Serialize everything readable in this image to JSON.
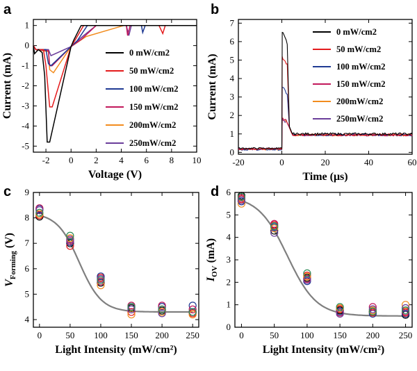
{
  "chart_data": [
    {
      "panel": "a",
      "type": "line",
      "xlabel": "Voltage (V)",
      "ylabel": "Current (mA)",
      "xlim": [
        -3,
        10
      ],
      "ylim": [
        -5.3,
        1.3
      ],
      "xticks": [
        -2,
        0,
        2,
        4,
        6,
        8,
        10
      ],
      "yticks": [
        1,
        0,
        -1,
        -2,
        -3,
        -4,
        -5
      ],
      "legend_position": "right",
      "series": [
        {
          "name": "0 mW/cm2",
          "color": "#000000",
          "points": [
            [
              -3,
              0
            ],
            [
              -2.9,
              -0.4
            ],
            [
              -2.6,
              -0.2
            ],
            [
              -2.3,
              -0.35
            ],
            [
              -2.1,
              -1.5
            ],
            [
              -1.9,
              -4.8
            ],
            [
              -1.7,
              -4.8
            ],
            [
              0,
              -0.05
            ],
            [
              0.2,
              0.25
            ],
            [
              0.8,
              1
            ],
            [
              8.4,
              1
            ],
            [
              8.6,
              1
            ],
            [
              10,
              1
            ]
          ]
        },
        {
          "name": "50 mW/cm2",
          "color": "#e41a1c",
          "points": [
            [
              -3,
              0
            ],
            [
              -2.8,
              -0.2
            ],
            [
              -2.2,
              -0.2
            ],
            [
              -2.0,
              -1.0
            ],
            [
              -1.7,
              -3.05
            ],
            [
              -1.5,
              -3.05
            ],
            [
              0,
              -0.05
            ],
            [
              0.3,
              0.25
            ],
            [
              1.0,
              1
            ],
            [
              7.0,
              1
            ],
            [
              7.3,
              0.6
            ],
            [
              7.5,
              1
            ],
            [
              10,
              1
            ]
          ]
        },
        {
          "name": "100 mW/cm2",
          "color": "#1f3a93",
          "points": [
            [
              -3,
              0
            ],
            [
              -2.8,
              -0.2
            ],
            [
              -2.0,
              -0.2
            ],
            [
              -1.8,
              -0.9
            ],
            [
              -1.6,
              -1.0
            ],
            [
              0,
              -0.05
            ],
            [
              0.5,
              0.25
            ],
            [
              1.3,
              1
            ],
            [
              5.6,
              1
            ],
            [
              5.7,
              0.65
            ],
            [
              5.9,
              1
            ],
            [
              10,
              1
            ]
          ]
        },
        {
          "name": "150 mW/cm2",
          "color": "#c2185b",
          "points": [
            [
              -3,
              0
            ],
            [
              -2.8,
              -0.2
            ],
            [
              -1.8,
              -0.25
            ],
            [
              -1.7,
              -1.0
            ],
            [
              -1.5,
              -1.0
            ],
            [
              0,
              -0.05
            ],
            [
              0.8,
              0.3
            ],
            [
              2.0,
              1
            ],
            [
              4.4,
              1
            ],
            [
              4.5,
              0.5
            ],
            [
              4.7,
              1
            ],
            [
              10,
              1
            ]
          ]
        },
        {
          "name": "200mW/cm2",
          "color": "#f28c1e",
          "points": [
            [
              -3,
              0
            ],
            [
              -2.8,
              -0.2
            ],
            [
              -1.8,
              -0.3
            ],
            [
              -1.7,
              -1.2
            ],
            [
              -1.4,
              -1.35
            ],
            [
              0,
              -0.05
            ],
            [
              1.2,
              0.45
            ],
            [
              4.2,
              1
            ],
            [
              10,
              1
            ]
          ]
        },
        {
          "name": "250mW/cm2",
          "color": "#6a3d9a",
          "points": [
            [
              -3,
              0
            ],
            [
              -2.8,
              -0.2
            ],
            [
              -1.8,
              -0.2
            ],
            [
              -1.6,
              -0.5
            ],
            [
              0,
              -0.05
            ],
            [
              1.0,
              0.5
            ],
            [
              2.0,
              1
            ],
            [
              4.4,
              1
            ],
            [
              4.6,
              0.5
            ],
            [
              4.8,
              1
            ],
            [
              10,
              1
            ]
          ]
        }
      ]
    },
    {
      "panel": "b",
      "type": "line",
      "xlabel": "Time (μs)",
      "ylabel": "Current (mA)",
      "xlim": [
        -20,
        60
      ],
      "ylim": [
        -0.1,
        7.2
      ],
      "xticks": [
        -20,
        0,
        20,
        40,
        60
      ],
      "yticks": [
        0,
        1,
        2,
        3,
        4,
        5,
        6,
        7
      ],
      "legend_position": "right",
      "series": [
        {
          "name": "0 mW/cm2",
          "color": "#000000",
          "base": 0.22,
          "peak": 6.5,
          "tail": 1.0
        },
        {
          "name": "50 mW/cm2",
          "color": "#e41a1c",
          "base": 0.18,
          "peak": 5.2,
          "tail": 0.95
        },
        {
          "name": "100 mW/cm2",
          "color": "#1f3a93",
          "base": 0.15,
          "peak": 3.5,
          "tail": 0.95
        },
        {
          "name": "150 mW/cm2",
          "color": "#c2185b",
          "base": 0.2,
          "peak": 1.85,
          "tail": 0.95
        },
        {
          "name": "200mW/cm2",
          "color": "#f28c1e",
          "base": 0.16,
          "peak": 1.85,
          "tail": 0.95
        },
        {
          "name": "250mW/cm2",
          "color": "#6a3d9a",
          "base": 0.2,
          "peak": 1.8,
          "tail": 0.95
        }
      ]
    },
    {
      "panel": "c",
      "type": "scatter",
      "xlabel": "Light Intensity (mW/cm²)",
      "ylabel_main": "V",
      "ylabel_sub": "Forming",
      "ylabel_unit": " (V)",
      "xlim": [
        -10,
        260
      ],
      "ylim": [
        3.7,
        9
      ],
      "xticks": [
        0,
        50,
        100,
        150,
        200,
        250
      ],
      "yticks": [
        4,
        5,
        6,
        7,
        8,
        9
      ],
      "fit_color": "#7f7f7f",
      "fit": {
        "top": 8.2,
        "bottom": 4.3,
        "x0": 65,
        "k": 0.055
      },
      "marker_colors": [
        "#000000",
        "#e41a1c",
        "#1f3a93",
        "#c2185b",
        "#f28c1e",
        "#6a3d9a",
        "#2e8b57"
      ],
      "points": [
        [
          0,
          8.05
        ],
        [
          0,
          8.1
        ],
        [
          0,
          8.35
        ],
        [
          0,
          8.38
        ],
        [
          0,
          8.15
        ],
        [
          0,
          8.3
        ],
        [
          0,
          8.2
        ],
        [
          50,
          7.0
        ],
        [
          50,
          6.9
        ],
        [
          50,
          7.05
        ],
        [
          50,
          7.1
        ],
        [
          50,
          7.2
        ],
        [
          50,
          7.15
        ],
        [
          50,
          7.3
        ],
        [
          100,
          5.45
        ],
        [
          100,
          5.65
        ],
        [
          100,
          5.7
        ],
        [
          100,
          5.5
        ],
        [
          100,
          5.35
        ],
        [
          100,
          5.6
        ],
        [
          100,
          5.55
        ],
        [
          150,
          4.45
        ],
        [
          150,
          4.3
        ],
        [
          150,
          4.5
        ],
        [
          150,
          4.55
        ],
        [
          150,
          4.2
        ],
        [
          150,
          4.4
        ],
        [
          150,
          4.5
        ],
        [
          200,
          4.35
        ],
        [
          200,
          4.4
        ],
        [
          200,
          4.5
        ],
        [
          200,
          4.55
        ],
        [
          200,
          4.3
        ],
        [
          200,
          4.25
        ],
        [
          200,
          4.4
        ],
        [
          250,
          4.3
        ],
        [
          250,
          4.25
        ],
        [
          250,
          4.55
        ],
        [
          250,
          4.4
        ],
        [
          250,
          4.2
        ],
        [
          250,
          4.3
        ],
        [
          250,
          4.3
        ]
      ]
    },
    {
      "panel": "d",
      "type": "scatter",
      "xlabel": "Light Intensity (mW/cm²)",
      "ylabel_main": "I",
      "ylabel_sub": "OV",
      "ylabel_unit": " (mA)",
      "xlim": [
        -10,
        260
      ],
      "ylim": [
        0,
        6
      ],
      "xticks": [
        0,
        50,
        100,
        150,
        200,
        250
      ],
      "yticks": [
        0,
        1,
        2,
        3,
        4,
        5,
        6
      ],
      "fit_color": "#7f7f7f",
      "fit": {
        "top": 5.85,
        "bottom": 0.5,
        "x0": 70,
        "k": 0.045
      },
      "marker_colors": [
        "#000000",
        "#e41a1c",
        "#1f3a93",
        "#c2185b",
        "#f28c1e",
        "#6a3d9a",
        "#2e8b57"
      ],
      "points": [
        [
          0,
          5.85
        ],
        [
          0,
          5.7
        ],
        [
          0,
          5.6
        ],
        [
          0,
          5.75
        ],
        [
          0,
          5.5
        ],
        [
          0,
          5.65
        ],
        [
          0,
          5.8
        ],
        [
          50,
          4.3
        ],
        [
          50,
          4.55
        ],
        [
          50,
          4.45
        ],
        [
          50,
          4.6
        ],
        [
          50,
          4.4
        ],
        [
          50,
          4.2
        ],
        [
          50,
          4.5
        ],
        [
          100,
          2.2
        ],
        [
          100,
          2.3
        ],
        [
          100,
          2.05
        ],
        [
          100,
          2.15
        ],
        [
          100,
          2.25
        ],
        [
          100,
          2.1
        ],
        [
          100,
          2.4
        ],
        [
          150,
          0.75
        ],
        [
          150,
          0.8
        ],
        [
          150,
          0.7
        ],
        [
          150,
          0.65
        ],
        [
          150,
          0.85
        ],
        [
          150,
          0.6
        ],
        [
          150,
          0.9
        ],
        [
          200,
          0.7
        ],
        [
          200,
          0.65
        ],
        [
          200,
          0.6
        ],
        [
          200,
          0.9
        ],
        [
          200,
          0.75
        ],
        [
          200,
          0.8
        ],
        [
          200,
          0.7
        ],
        [
          250,
          0.55
        ],
        [
          250,
          0.65
        ],
        [
          250,
          0.6
        ],
        [
          250,
          0.7
        ],
        [
          250,
          1.0
        ],
        [
          250,
          0.85
        ],
        [
          250,
          0.75
        ]
      ]
    }
  ]
}
